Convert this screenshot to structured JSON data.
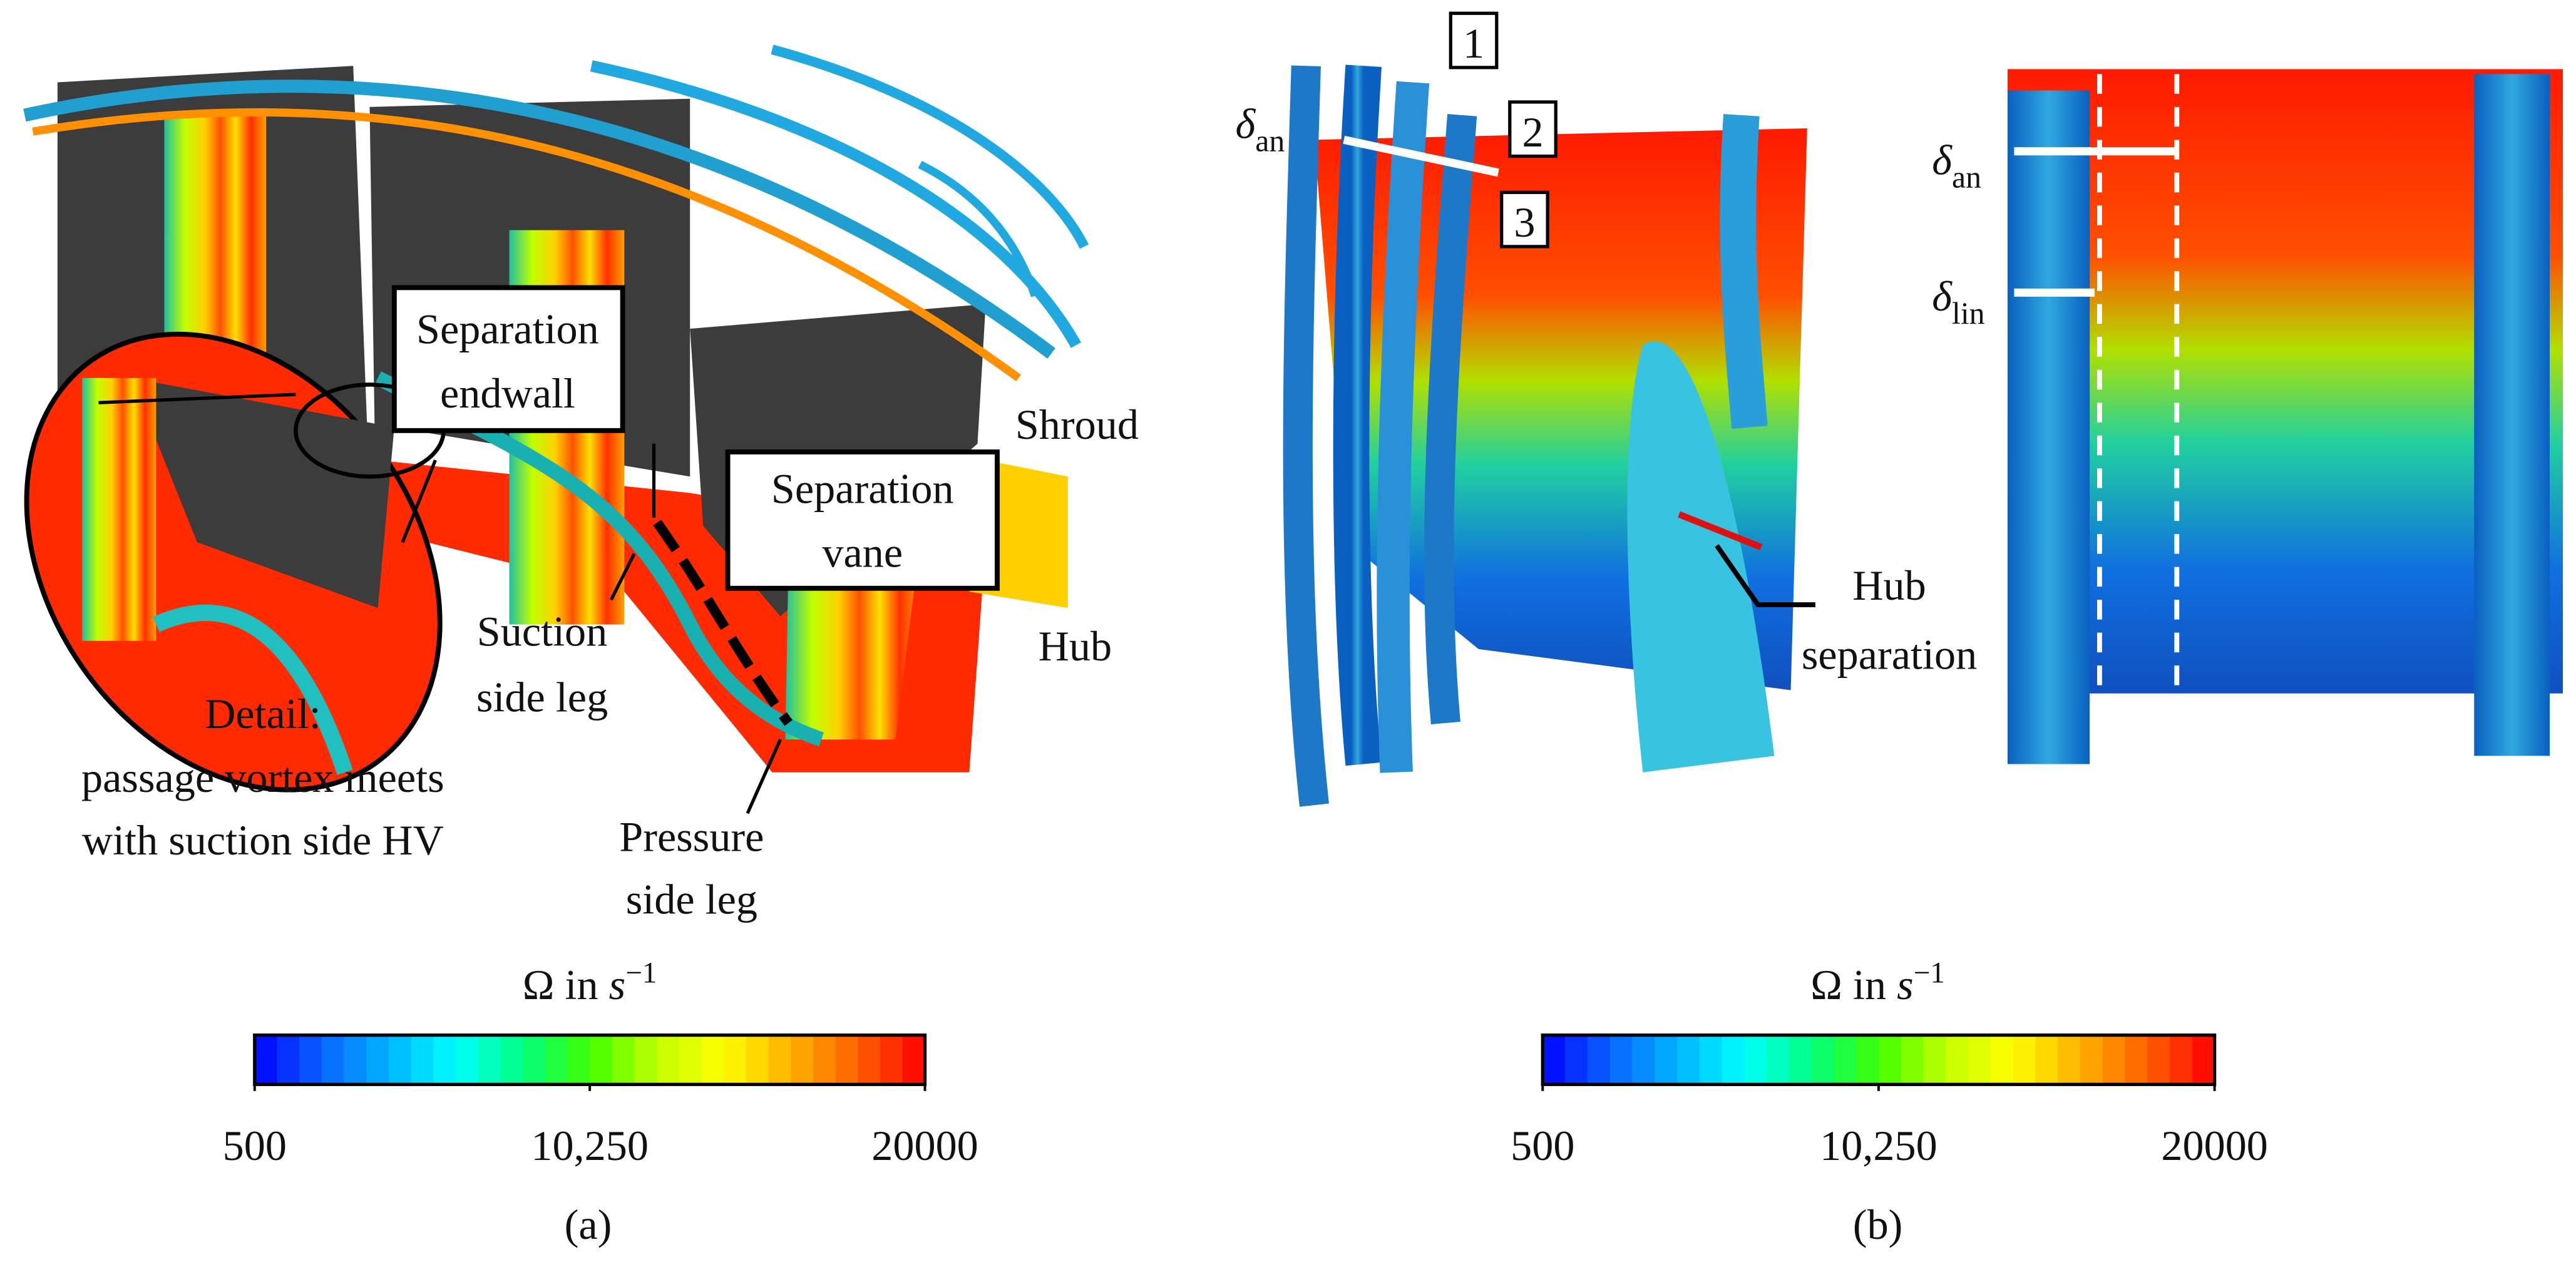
{
  "panel_a": {
    "label": "(a)",
    "annotations": {
      "separation_endwall": [
        "Separation",
        "endwall"
      ],
      "separation_vane": [
        "Separation",
        "vane"
      ],
      "shroud": "Shroud",
      "hub": "Hub",
      "suction_side_leg": [
        "Suction",
        "side leg"
      ],
      "pressure_side_leg": [
        "Pressure",
        "side leg"
      ],
      "detail": [
        "Detail:",
        "passage vortex meets",
        "with suction side HV"
      ]
    },
    "colorbar": {
      "title": {
        "text": "Ω in",
        "variable": "s",
        "exponent": "−1"
      },
      "clim": [
        500,
        20000
      ],
      "ticks": [
        500,
        {
          "value": 10250,
          "label": "10,250"
        },
        20000
      ],
      "colormap": [
        "#0000ff",
        "#0a64ff",
        "#00b4ff",
        "#00ffff",
        "#00ff80",
        "#40ff00",
        "#c0ff00",
        "#ffff00",
        "#ffb000",
        "#ff6000",
        "#ff0000"
      ]
    }
  },
  "panel_b": {
    "label": "(b)",
    "annotations": {
      "markers": [
        "1",
        "2",
        "3"
      ],
      "delta_an_left": {
        "symbol": "δ",
        "sub": "an"
      },
      "delta_an_right": {
        "symbol": "δ",
        "sub": "an"
      },
      "delta_lin": {
        "symbol": "δ",
        "sub": "lin"
      },
      "hub_separation": [
        "Hub",
        "separation"
      ]
    },
    "colorbar": {
      "title": {
        "text": "Ω in",
        "variable": "s",
        "exponent": "−1"
      },
      "clim": [
        500,
        20000
      ],
      "ticks": [
        500,
        {
          "value": 10250,
          "label": "10,250"
        },
        20000
      ],
      "colormap": [
        "#0000ff",
        "#0a64ff",
        "#00b4ff",
        "#00ffff",
        "#00ff80",
        "#40ff00",
        "#c0ff00",
        "#ffff00",
        "#ffb000",
        "#ff6000",
        "#ff0000"
      ]
    }
  }
}
